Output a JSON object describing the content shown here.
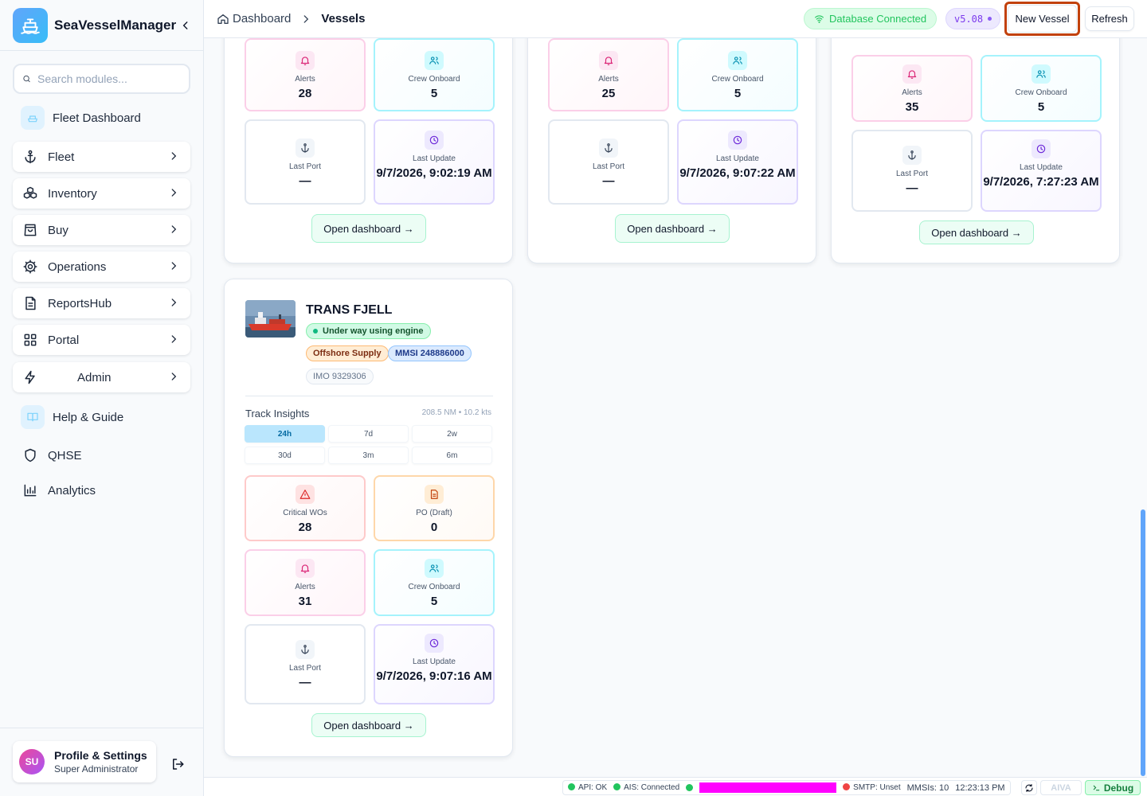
{
  "app": {
    "name": "SeaVesselManager"
  },
  "sidebar": {
    "search_placeholder": "Search modules...",
    "items": [
      {
        "label": "Fleet Dashboard",
        "icon": "ship-icon"
      },
      {
        "label": "Fleet",
        "icon": "anchor-icon"
      },
      {
        "label": "Inventory",
        "icon": "boxes-icon"
      },
      {
        "label": "Buy",
        "icon": "shopping-bag-icon"
      },
      {
        "label": "Operations",
        "icon": "gear-icon"
      },
      {
        "label": "ReportsHub",
        "icon": "document-icon"
      },
      {
        "label": "Portal",
        "icon": "grid-icon"
      },
      {
        "label": "Admin",
        "icon": "bolt-icon"
      },
      {
        "label": "Help & Guide",
        "icon": "book-icon"
      },
      {
        "label": "QHSE",
        "icon": "shield-icon"
      },
      {
        "label": "Analytics",
        "icon": "bar-chart-icon"
      }
    ],
    "profile": {
      "initials": "SU",
      "name": "Profile & Settings",
      "role": "Super Administrator"
    }
  },
  "header": {
    "breadcrumb": [
      "Dashboard",
      "Vessels"
    ],
    "db_status": "Database Connected",
    "version": "v5.08",
    "new_vessel": "New Vessel",
    "refresh": "Refresh"
  },
  "cards_top": [
    {
      "alerts": "28",
      "crew": "5",
      "last_port": "—",
      "last_update": "9/7/2026, 9:02:19 AM"
    },
    {
      "alerts": "25",
      "crew": "5",
      "last_port": "—",
      "last_update": "9/7/2026, 9:07:22 AM"
    },
    {
      "alerts": "35",
      "crew": "5",
      "last_port": "—",
      "last_update": "9/7/2026, 7:27:23 AM"
    }
  ],
  "labels": {
    "alerts": "Alerts",
    "crew": "Crew Onboard",
    "last_port": "Last Port",
    "last_update": "Last Update",
    "critical_wos": "Critical WOs",
    "po_draft": "PO (Draft)",
    "open_dashboard": "Open dashboard →",
    "track_insights": "Track Insights"
  },
  "vessel": {
    "name": "TRANS FJELL",
    "status": "Under way using engine",
    "type": "Offshore Supply",
    "mmsi": "MMSI 248886000",
    "imo": "IMO 9329306",
    "track_meta": "208.5 NM • 10.2 kts",
    "ranges": [
      "24h",
      "7d",
      "2w",
      "30d",
      "3m",
      "6m"
    ],
    "active_range": "24h",
    "critical_wos": "28",
    "po_draft": "0",
    "alerts": "31",
    "crew": "5",
    "last_port": "—",
    "last_update": "9/7/2026, 9:07:16 AM"
  },
  "status_bar": {
    "api": "API: OK",
    "ais": "AIS: Connected",
    "smtp": "SMTP: Unset",
    "mmsis": "MMSIs: 10",
    "time": "12:23:13 PM",
    "aiva": "AIVA",
    "debug": "Debug"
  },
  "colors": {
    "accent": "#0ea5e9",
    "success": "#22c55e",
    "highlight_ring": "#c2410c",
    "magenta_block": "#ff00ff"
  }
}
